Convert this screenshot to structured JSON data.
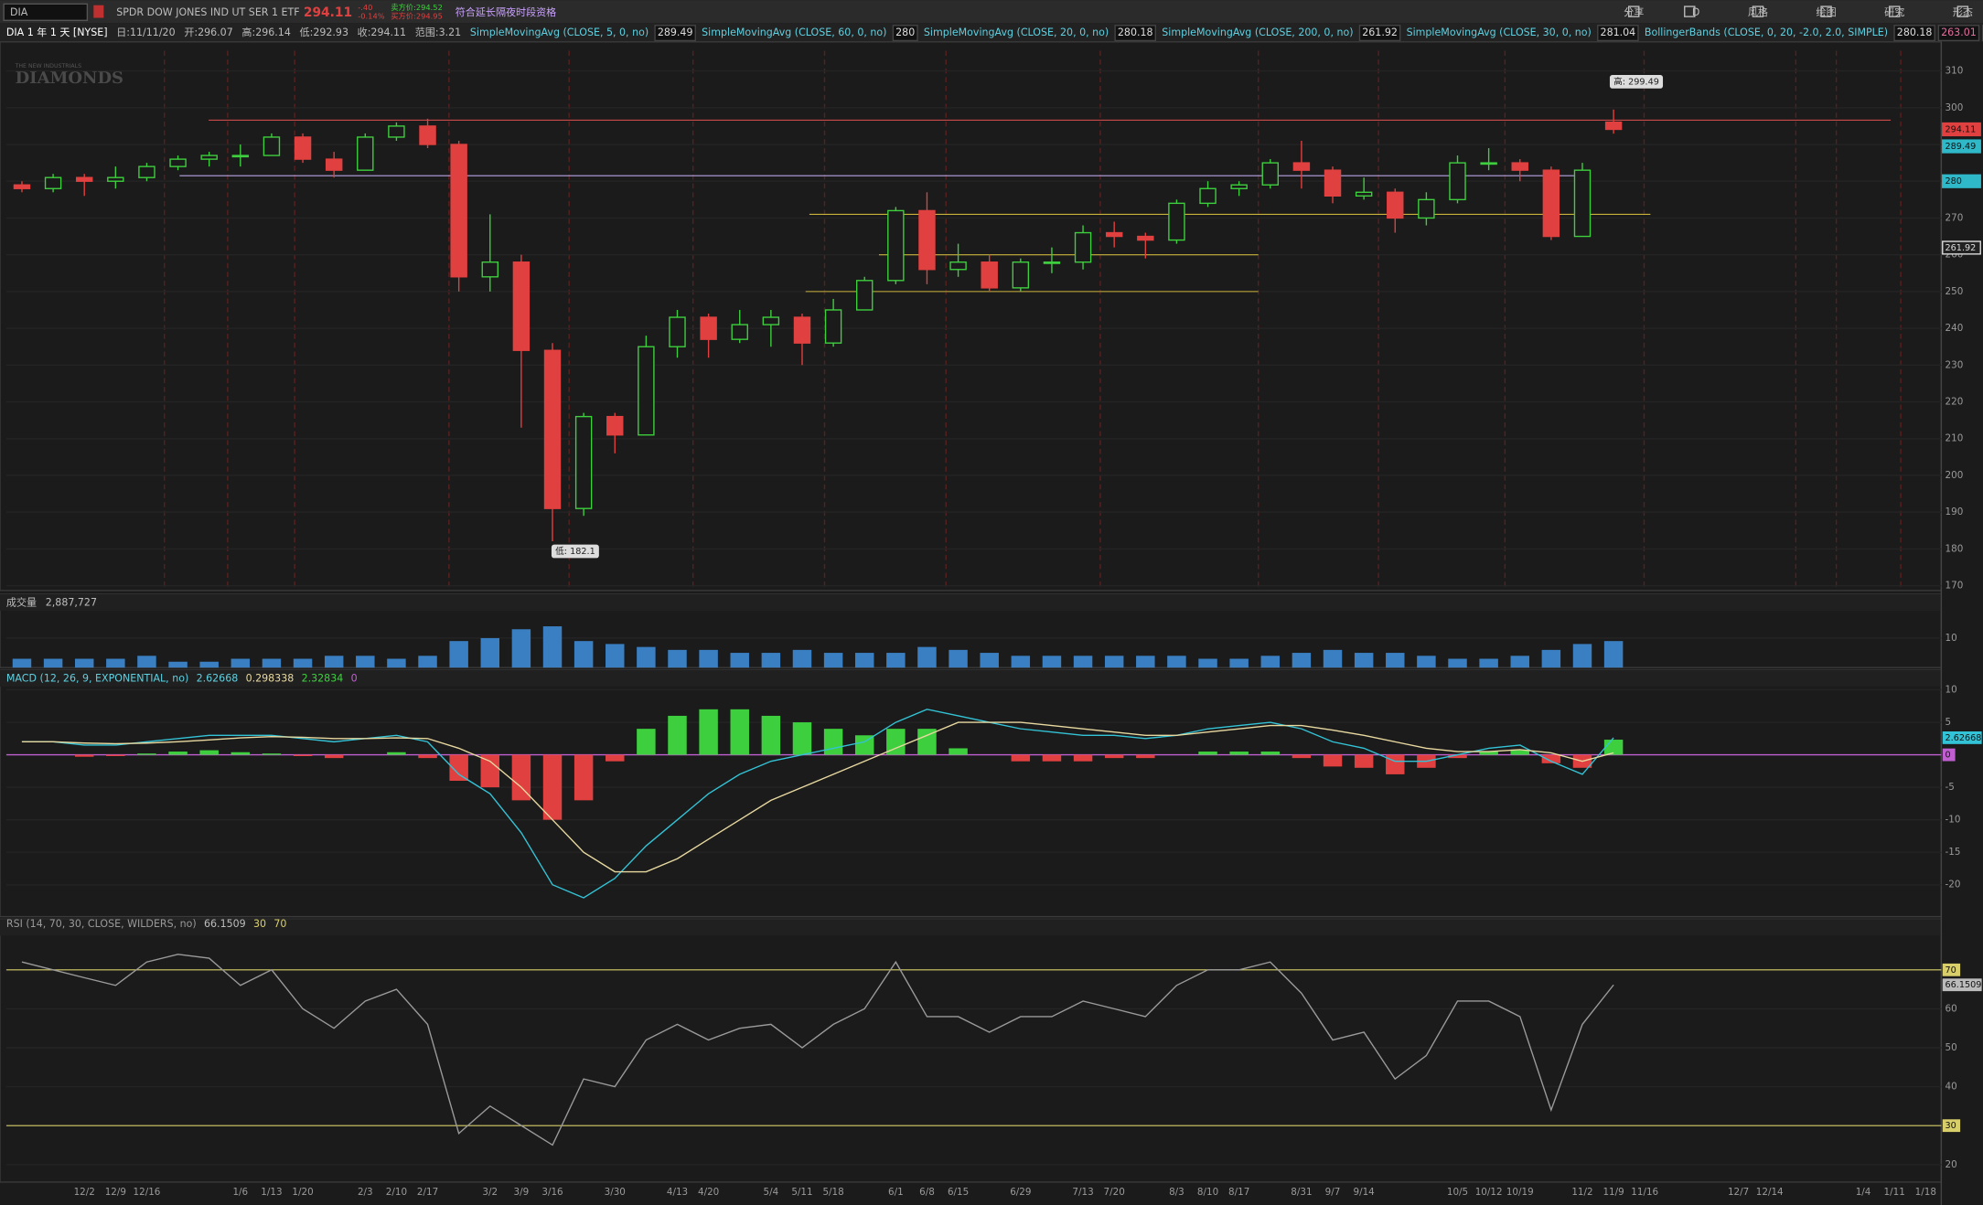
{
  "toolbar": {
    "symbol": "DIA",
    "description": "SPDR DOW JONES IND UT SER 1 ETF",
    "last": "294.11",
    "change": "-.40",
    "change_pct": "-0.14%",
    "bid": "卖方价:294.52",
    "ask": "买方价:294.95",
    "extended": "符合延长隔夜时段资格",
    "buttons": [
      "分享",
      "D",
      "风格",
      "绘图",
      "研究",
      "形态"
    ]
  },
  "chart_data": {
    "type": "candlestick",
    "header": [
      "DIA 1 年 1 天 [NYSE]",
      "日:11/11/20",
      "开:296.07",
      "高:296.14",
      "低:292.93",
      "收:294.11",
      "范围:3.21"
    ],
    "studies": [
      {
        "label": "SimpleMovingAvg (CLOSE, 5, 0, no)",
        "value": 289.49
      },
      {
        "label": "SimpleMovingAvg (CLOSE, 60, 0, no)",
        "value": 280
      },
      {
        "label": "SimpleMovingAvg (CLOSE, 20, 0, no)",
        "value": 280.18
      },
      {
        "label": "SimpleMovingAvg (CLOSE, 200, 0, no)",
        "value": 261.92
      },
      {
        "label": "SimpleMovingAvg (CLOSE, 30, 0, no)",
        "value": 281.04
      }
    ],
    "bollinger": {
      "label": "BollingerBands (CLOSE, 0, 20, -2.0, 2.0, SIMPLE)",
      "values": [
        280.18,
        263.01,
        297.34
      ]
    },
    "watermark": [
      "THE NEW INDUSTRIALS",
      "DIAMONDS"
    ],
    "high_label": "高: 299.49",
    "low_label": "低: 182.1",
    "categories": [
      null,
      null,
      "12/2",
      "12/9",
      "12/16",
      null,
      null,
      "1/6",
      "1/13",
      "1/20",
      null,
      "2/3",
      "2/10",
      "2/17",
      null,
      "3/2",
      "3/9",
      "3/16",
      null,
      "3/30",
      null,
      "4/13",
      "4/20",
      null,
      "5/4",
      "5/11",
      "5/18",
      null,
      "6/1",
      "6/8",
      "6/15",
      null,
      "6/29",
      null,
      "7/13",
      "7/20",
      null,
      "8/3",
      "8/10",
      "8/17",
      null,
      "8/31",
      "9/7",
      "9/14",
      null,
      null,
      "10/5",
      "10/12",
      "10/19",
      null,
      "11/2",
      "11/9",
      "11/16",
      null,
      null,
      "12/7",
      "12/14",
      null,
      null,
      "1/4",
      "1/11",
      "1/18"
    ],
    "open": [
      279,
      278,
      281,
      280,
      281,
      284,
      286,
      287,
      287,
      292,
      286,
      283,
      292,
      295,
      290,
      254,
      258,
      234,
      191,
      216,
      211,
      235,
      243,
      237,
      241,
      243,
      236,
      245,
      253,
      272,
      256,
      258,
      251,
      258,
      258,
      266,
      265,
      264,
      274,
      278,
      279,
      285,
      283,
      276,
      277,
      270,
      275,
      285,
      285,
      283,
      265,
      296.07,
      null,
      null,
      null,
      null,
      null,
      null,
      null,
      null,
      null,
      null
    ],
    "high": [
      280,
      282,
      282,
      284,
      285,
      287,
      288,
      290,
      293,
      293,
      288,
      293,
      296,
      297,
      291,
      271,
      260,
      236,
      217,
      217,
      238,
      245,
      244,
      245,
      245,
      244,
      248,
      254,
      273,
      277,
      263,
      260,
      259,
      262,
      268,
      269,
      266,
      275,
      280,
      280,
      286,
      291,
      284,
      281,
      278,
      277,
      287,
      289,
      286,
      284,
      285,
      299.49,
      null,
      null,
      null,
      null,
      null,
      null,
      null,
      null,
      null,
      null
    ],
    "low": [
      277,
      277,
      276,
      278,
      280,
      283,
      284,
      284,
      287,
      285,
      281,
      283,
      291,
      289,
      250,
      250,
      213,
      182.1,
      189,
      206,
      211,
      232,
      232,
      236,
      235,
      230,
      235,
      245,
      252,
      252,
      254,
      250,
      250,
      255,
      256,
      262,
      259,
      263,
      273,
      276,
      278,
      278,
      274,
      275,
      266,
      268,
      274,
      283,
      280,
      264,
      265,
      292.93,
      null,
      null,
      null,
      null,
      null,
      null,
      null,
      null,
      null,
      null
    ],
    "close": [
      278,
      281,
      280,
      281,
      284,
      286,
      287,
      287,
      292,
      286,
      283,
      292,
      295,
      290,
      254,
      258,
      234,
      191,
      216,
      211,
      235,
      243,
      237,
      241,
      243,
      236,
      245,
      253,
      272,
      256,
      258,
      251,
      258,
      258,
      266,
      265,
      264,
      274,
      278,
      279,
      285,
      283,
      276,
      277,
      270,
      275,
      285,
      285,
      283,
      265,
      283,
      294.11,
      null,
      null,
      null,
      null,
      null,
      null,
      null,
      null,
      null,
      null
    ],
    "up_color": "#3ecf3e",
    "down_color": "#e0403f",
    "ylim": [
      168.7,
      317.9
    ],
    "yticks": [
      170,
      180,
      190,
      200,
      210,
      220,
      230,
      240,
      250,
      260,
      270,
      280,
      290,
      300,
      310
    ],
    "levels": [
      {
        "value": 296.6,
        "color": "#c94a4a"
      },
      {
        "value": 281.5,
        "color": "#b9a6e6"
      },
      {
        "value": 271,
        "color": "#c9b23a"
      },
      {
        "value": 260,
        "color": "#c9b23a"
      },
      {
        "value": 250,
        "color": "#c9b23a"
      }
    ],
    "price_labels": {
      "values": [
        294.11,
        289.49,
        280,
        261.92
      ],
      "colors": [
        "#e0403f",
        "#2fb8c8",
        "#2fb8c8",
        "#dddddd"
      ]
    },
    "volume": {
      "label": "成交量",
      "value_label": "2,887,727",
      "color": "#3a7fc1",
      "values": [
        3,
        3,
        3,
        3,
        4,
        2,
        2,
        3,
        3,
        3,
        4,
        4,
        3,
        4,
        9,
        10,
        13,
        14,
        9,
        8,
        7,
        6,
        6,
        5,
        5,
        6,
        5,
        5,
        5,
        7,
        6,
        5,
        4,
        4,
        4,
        4,
        4,
        4,
        3,
        3,
        4,
        5,
        6,
        5,
        5,
        4,
        3,
        3,
        4,
        6,
        8,
        9,
        null,
        null,
        null,
        null,
        null,
        null,
        null,
        null,
        null,
        null
      ],
      "ylim": [
        0,
        18
      ],
      "yticks": [
        10
      ]
    },
    "macd": {
      "label": "MACD (12, 26, 9, EXPONENTIAL, no)",
      "value_labels": [
        "2.62668",
        "0.298338",
        "2.32834",
        "0"
      ],
      "series": [
        {
          "name": "Value",
          "color": "#33c3d6",
          "values": [
            2,
            2,
            1.5,
            1.5,
            2,
            2.5,
            3,
            3,
            3,
            2.5,
            2,
            2.5,
            3,
            2,
            -3,
            -6,
            -12,
            -20,
            -22,
            -19,
            -14,
            -10,
            -6,
            -3,
            -1,
            0,
            1,
            2,
            5,
            7,
            6,
            5,
            4,
            3.5,
            3,
            3,
            2.5,
            3,
            4,
            4.5,
            5,
            4,
            2,
            1,
            -1,
            -1,
            0,
            1,
            1.5,
            -1,
            -3,
            2.62668,
            null,
            null,
            null,
            null,
            null,
            null,
            null,
            null,
            null,
            null
          ]
        },
        {
          "name": "Avg",
          "color": "#e8d9a0",
          "values": [
            2,
            2,
            1.8,
            1.7,
            1.8,
            2,
            2.3,
            2.6,
            2.8,
            2.7,
            2.5,
            2.5,
            2.6,
            2.5,
            1,
            -1,
            -5,
            -10,
            -15,
            -18,
            -18,
            -16,
            -13,
            -10,
            -7,
            -5,
            -3,
            -1,
            1,
            3,
            5,
            5,
            5,
            4.5,
            4,
            3.5,
            3,
            3,
            3.5,
            4,
            4.5,
            4.5,
            3.8,
            3,
            2,
            1,
            0.5,
            0.5,
            0.8,
            0.3,
            -1,
            0.298338,
            null,
            null,
            null,
            null,
            null,
            null,
            null,
            null,
            null,
            null
          ]
        }
      ],
      "diff": [
        0,
        0,
        -0.3,
        -0.2,
        0.2,
        0.5,
        0.7,
        0.4,
        0.2,
        -0.2,
        -0.5,
        0,
        0.4,
        -0.5,
        -4,
        -5,
        -7,
        -10,
        -7,
        -1,
        4,
        6,
        7,
        7,
        6,
        5,
        4,
        3,
        4,
        4,
        1,
        0,
        -1,
        -1,
        -1,
        -0.5,
        -0.5,
        0,
        0.5,
        0.5,
        0.5,
        -0.5,
        -1.8,
        -2,
        -3,
        -2,
        -0.5,
        0.5,
        0.7,
        -1.3,
        -2,
        2.32834,
        null,
        null,
        null,
        null,
        null,
        null,
        null,
        null,
        null,
        null
      ],
      "zero": 0,
      "zero_color": "#c060d0",
      "ylim": [
        -24.9,
        10.5
      ],
      "yticks": [
        10,
        5,
        -5,
        -10,
        -15,
        -20
      ]
    },
    "rsi": {
      "label": "RSI (14, 70, 30, CLOSE, WILDERS, no)",
      "value_label": "66.1509",
      "color": "#9a9a9a",
      "values": [
        72,
        70,
        68,
        66,
        72,
        74,
        73,
        66,
        70,
        60,
        55,
        62,
        65,
        56,
        28,
        35,
        30,
        25,
        42,
        40,
        52,
        56,
        52,
        55,
        56,
        50,
        56,
        60,
        72,
        58,
        58,
        54,
        58,
        58,
        62,
        60,
        58,
        66,
        70,
        70,
        72,
        64,
        52,
        54,
        42,
        48,
        62,
        62,
        58,
        34,
        56,
        66.1509,
        null,
        null,
        null,
        null,
        null,
        null,
        null,
        null,
        null,
        null
      ],
      "levels": [
        30,
        70
      ],
      "level_color": "#d8cf6a",
      "ylim": [
        15.5,
        78.8
      ],
      "yticks": [
        20,
        40,
        50,
        60
      ]
    }
  }
}
